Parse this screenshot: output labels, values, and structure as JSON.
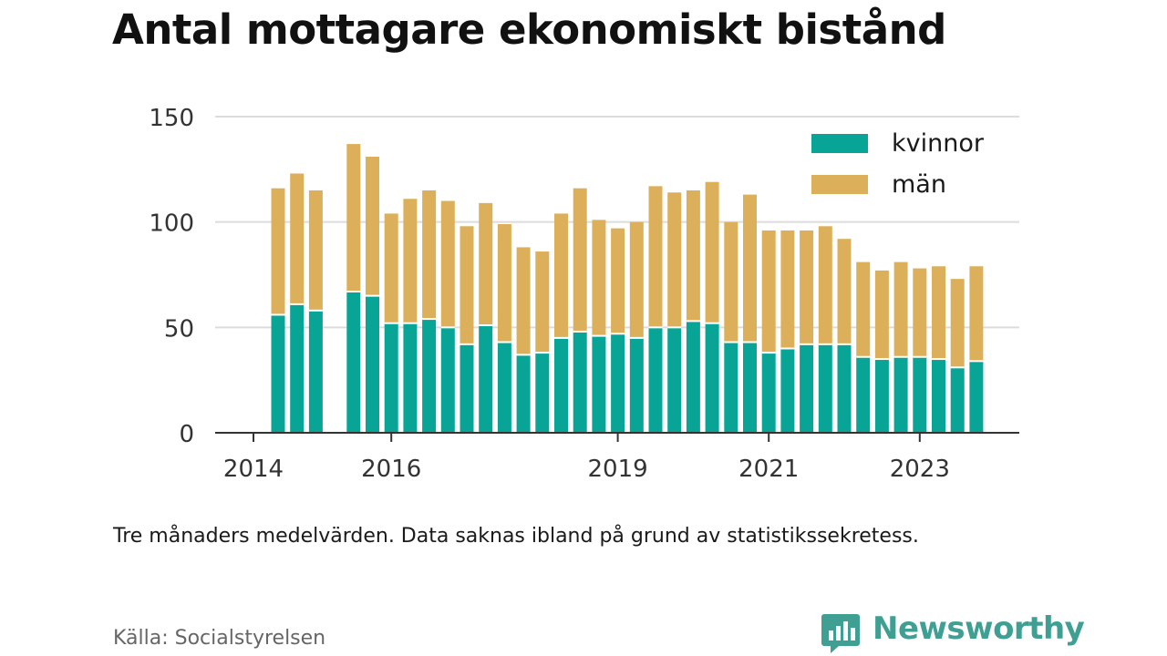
{
  "title": "Antal mottagare ekonomiskt bistånd",
  "note": "Tre månaders medelvärden. Data saknas ibland på grund av statistikssekretess.",
  "source": "Källa: Socialstyrelsen",
  "brand": {
    "name": "Newsworthy",
    "color": "#3f9f93",
    "icon": "newsworthy-logo-icon"
  },
  "chart_data": {
    "type": "bar",
    "stacked": true,
    "x_ticks": [
      "2014",
      "2016",
      "2019",
      "2021",
      "2023"
    ],
    "y_ticks": [
      0,
      50,
      100,
      150
    ],
    "ylim": [
      0,
      150
    ],
    "grid": true,
    "legend_position": "top-right",
    "legend": [
      "kvinnor",
      "män"
    ],
    "colors": {
      "kvinnor": "#08a597",
      "män": "#dcb05b"
    },
    "x": [
      "2014-Q3",
      "2014-Q4",
      "2015-Q1",
      "2015-Q2",
      "2015-Q3",
      "2015-Q4",
      "2016-Q1",
      "2016-Q2",
      "2016-Q3",
      "2016-Q4",
      "2017-Q1",
      "2017-Q2",
      "2017-Q3",
      "2017-Q4",
      "2018-Q1",
      "2018-Q2",
      "2018-Q3",
      "2018-Q4",
      "2019-Q1",
      "2019-Q2",
      "2019-Q3",
      "2019-Q4",
      "2020-Q1",
      "2020-Q2",
      "2020-Q3",
      "2020-Q4",
      "2021-Q1",
      "2021-Q2",
      "2021-Q3",
      "2021-Q4",
      "2022-Q1",
      "2022-Q2",
      "2022-Q3",
      "2022-Q4",
      "2023-Q1",
      "2023-Q2",
      "2023-Q3",
      "2023-Q4",
      "2024-Q1",
      "2024-Q2",
      "2024-Q3"
    ],
    "series": [
      {
        "name": "kvinnor",
        "values": [
          56,
          61,
          58,
          null,
          67,
          65,
          52,
          52,
          54,
          50,
          42,
          51,
          43,
          37,
          38,
          45,
          48,
          46,
          47,
          45,
          50,
          50,
          53,
          52,
          43,
          43,
          38,
          40,
          42,
          42,
          42,
          36,
          35,
          36,
          36,
          35,
          31,
          34,
          null,
          null,
          null
        ]
      },
      {
        "name": "män",
        "values": [
          60,
          62,
          57,
          null,
          70,
          66,
          52,
          59,
          61,
          60,
          56,
          58,
          56,
          51,
          48,
          59,
          68,
          55,
          50,
          55,
          67,
          64,
          62,
          67,
          57,
          70,
          58,
          56,
          54,
          56,
          50,
          45,
          42,
          45,
          42,
          44,
          42,
          45,
          null,
          null,
          null
        ]
      }
    ]
  }
}
